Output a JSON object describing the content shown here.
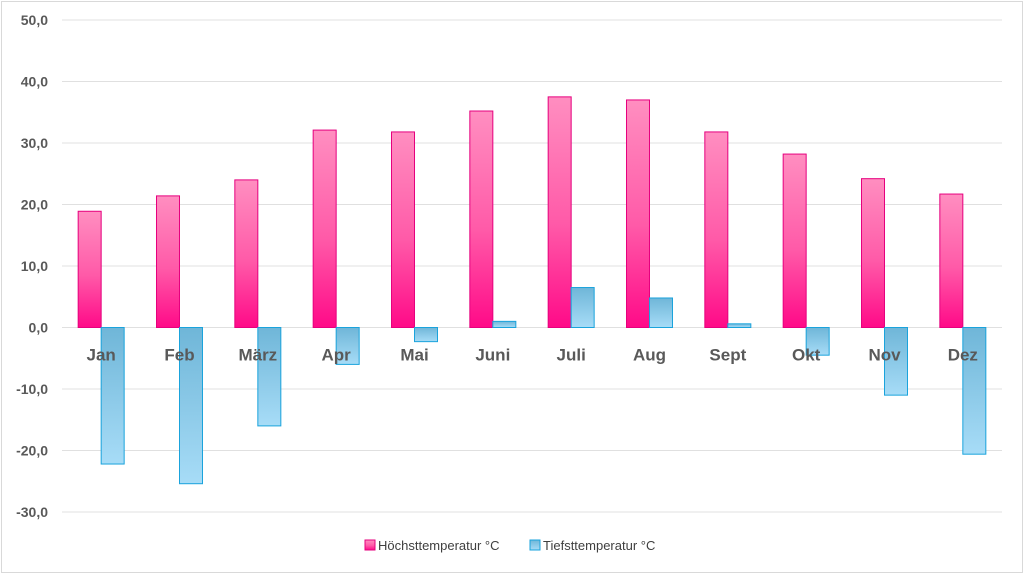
{
  "chart_data": {
    "type": "bar",
    "categories": [
      "Jan",
      "Feb",
      "März",
      "Apr",
      "Mai",
      "Juni",
      "Juli",
      "Aug",
      "Sept",
      "Okt",
      "Nov",
      "Dez"
    ],
    "series": [
      {
        "name": "Höchsttemperatur °C",
        "color": "#ff1493",
        "values": [
          18.9,
          21.4,
          24.0,
          32.1,
          31.8,
          35.2,
          37.5,
          37.0,
          31.8,
          28.2,
          24.2,
          21.7
        ]
      },
      {
        "name": "Tiefsttemperatur °C",
        "color": "#5bc0eb",
        "values": [
          -22.2,
          -25.4,
          -16.0,
          -6.0,
          -2.3,
          1.0,
          6.5,
          4.8,
          0.6,
          -4.5,
          -11.0,
          -20.6
        ]
      }
    ],
    "ylim": [
      -30,
      50
    ],
    "yticks": [
      "50,0",
      "40,0",
      "30,0",
      "20,0",
      "10,0",
      "0,0",
      "-10,0",
      "-20,0",
      "-30,0"
    ],
    "ytick_values": [
      50,
      40,
      30,
      20,
      10,
      0,
      -10,
      -20,
      -30
    ],
    "title": "",
    "xlabel": "",
    "ylabel": "",
    "legend_position": "bottom-center",
    "grid": true
  }
}
